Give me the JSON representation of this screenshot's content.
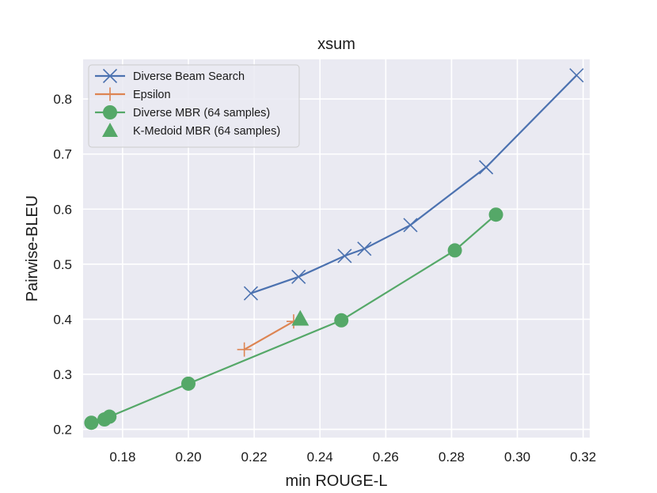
{
  "chart_data": {
    "type": "line",
    "title": "xsum",
    "xlabel": "min ROUGE-L",
    "ylabel": "Pairwise-BLEU",
    "xlim": [
      0.168,
      0.322
    ],
    "ylim": [
      0.185,
      0.872
    ],
    "xticks": [
      0.18,
      0.2,
      0.22,
      0.24,
      0.26,
      0.28,
      0.3,
      0.32
    ],
    "xtick_labels": [
      "0.18",
      "0.20",
      "0.22",
      "0.24",
      "0.26",
      "0.28",
      "0.30",
      "0.32"
    ],
    "yticks": [
      0.2,
      0.3,
      0.4,
      0.5,
      0.6,
      0.7,
      0.8
    ],
    "ytick_labels": [
      "0.2",
      "0.3",
      "0.4",
      "0.5",
      "0.6",
      "0.7",
      "0.8"
    ],
    "grid": true,
    "background": "#eaeaf2",
    "legend_position": "top-left",
    "series": [
      {
        "name": "Diverse Beam Search",
        "color": "#4c72b0",
        "marker": "x",
        "line": true,
        "points": [
          {
            "x": 0.219,
            "y": 0.447
          },
          {
            "x": 0.2335,
            "y": 0.477
          },
          {
            "x": 0.2475,
            "y": 0.515
          },
          {
            "x": 0.2535,
            "y": 0.528
          },
          {
            "x": 0.2675,
            "y": 0.571
          },
          {
            "x": 0.2905,
            "y": 0.676
          },
          {
            "x": 0.318,
            "y": 0.843
          }
        ]
      },
      {
        "name": "Epsilon",
        "color": "#dd8452",
        "marker": "plus",
        "line": true,
        "points": [
          {
            "x": 0.217,
            "y": 0.345
          },
          {
            "x": 0.232,
            "y": 0.396
          }
        ]
      },
      {
        "name": "Diverse MBR (64 samples)",
        "color": "#55a868",
        "marker": "circle",
        "line": true,
        "points": [
          {
            "x": 0.1705,
            "y": 0.212
          },
          {
            "x": 0.1745,
            "y": 0.218
          },
          {
            "x": 0.176,
            "y": 0.223
          },
          {
            "x": 0.2,
            "y": 0.283
          },
          {
            "x": 0.2465,
            "y": 0.398
          },
          {
            "x": 0.281,
            "y": 0.525
          },
          {
            "x": 0.2935,
            "y": 0.59
          }
        ]
      },
      {
        "name": "K-Medoid MBR (64 samples)",
        "color": "#55a868",
        "marker": "triangle",
        "line": false,
        "points": [
          {
            "x": 0.234,
            "y": 0.401
          }
        ]
      }
    ]
  }
}
